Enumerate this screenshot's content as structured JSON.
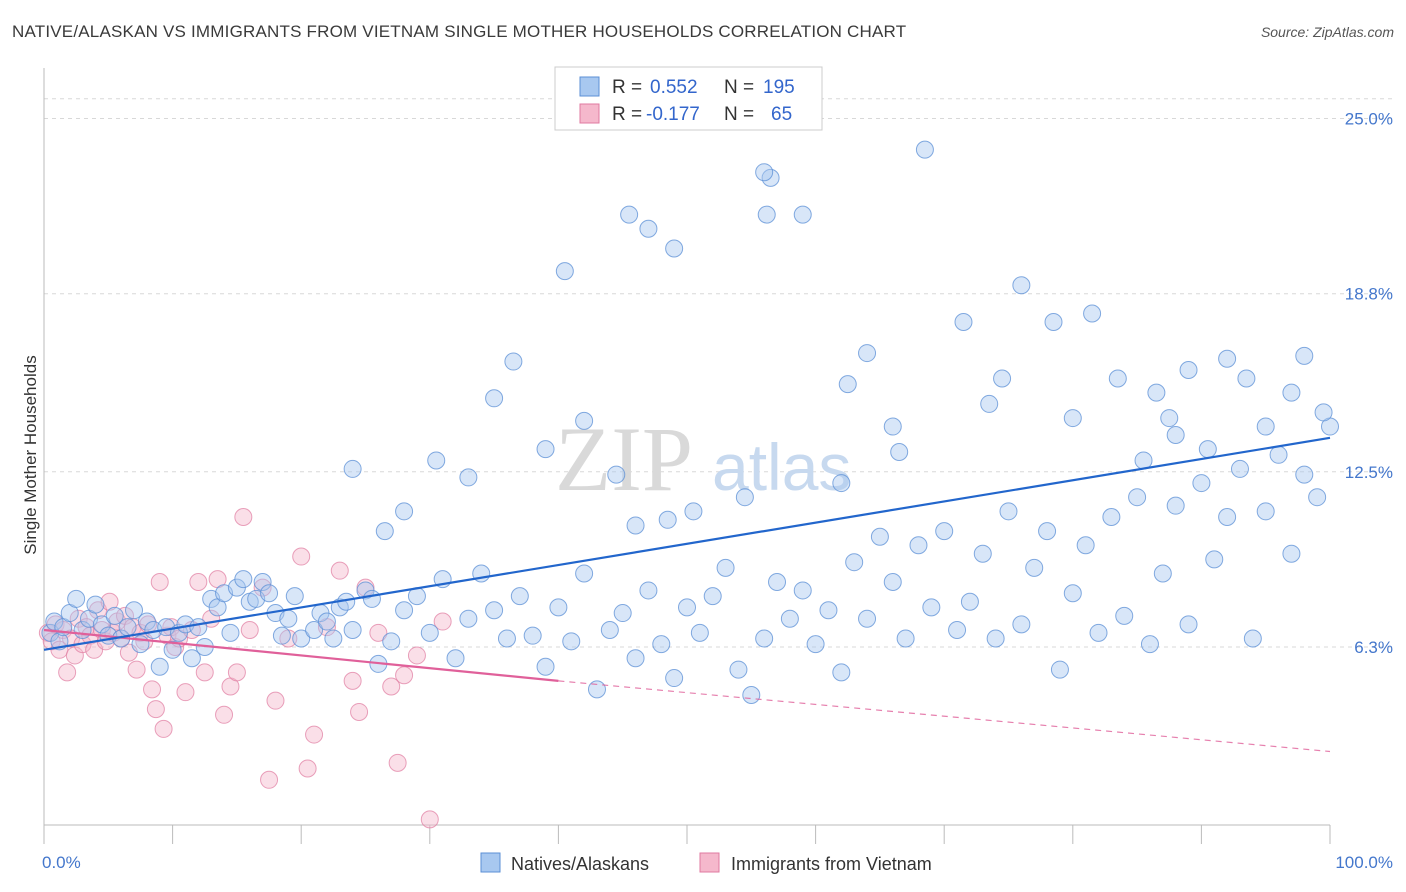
{
  "title": "NATIVE/ALASKAN VS IMMIGRANTS FROM VIETNAM SINGLE MOTHER HOUSEHOLDS CORRELATION CHART",
  "source": "Source: ZipAtlas.com",
  "watermark": {
    "zip": "ZIP",
    "atlas": "atlas"
  },
  "legend": {
    "rows": [
      {
        "r_label": "R =",
        "r_value": "0.552",
        "n_label": "N =",
        "n_value": "195"
      },
      {
        "r_label": "R =",
        "r_value": "-0.177",
        "n_label": "N =",
        "n_value": "65"
      }
    ]
  },
  "bottom_legend": [
    "Natives/Alaskans",
    "Immigrants from Vietnam"
  ],
  "chart_data": {
    "type": "scatter",
    "ylabel": "Single Mother Households",
    "xlim": [
      0,
      100
    ],
    "ylim": [
      0,
      27
    ],
    "x_tick_labels": [
      "0.0%",
      "100.0%"
    ],
    "y_ticks": [
      {
        "value": 6.3,
        "label": "6.3%"
      },
      {
        "value": 12.5,
        "label": "12.5%"
      },
      {
        "value": 18.8,
        "label": "18.8%"
      },
      {
        "value": 25.0,
        "label": "25.0%"
      }
    ],
    "grid": true,
    "legend_position": "top-center",
    "colors": {
      "blue_fill": "#a8c8f0",
      "blue_stroke": "#5b8fd6",
      "blue_line": "#2266cc",
      "pink_fill": "#f5b8cc",
      "pink_stroke": "#e07aa0",
      "pink_line": "#e0609a",
      "tick_text": "#4477cc",
      "grid": "#d8d8d8"
    },
    "series": [
      {
        "name": "Natives/Alaskans",
        "trend": {
          "x": [
            0,
            100
          ],
          "y": [
            6.2,
            13.7
          ]
        },
        "points": [
          [
            0.5,
            6.8
          ],
          [
            0.8,
            7.2
          ],
          [
            1.2,
            6.5
          ],
          [
            1.5,
            7.0
          ],
          [
            2.0,
            7.5
          ],
          [
            2.5,
            8.0
          ],
          [
            3.0,
            6.9
          ],
          [
            3.5,
            7.3
          ],
          [
            4.0,
            7.8
          ],
          [
            4.5,
            7.1
          ],
          [
            5.0,
            6.7
          ],
          [
            5.5,
            7.4
          ],
          [
            6.0,
            6.6
          ],
          [
            6.5,
            7.0
          ],
          [
            7.0,
            7.6
          ],
          [
            7.5,
            6.4
          ],
          [
            8.0,
            7.2
          ],
          [
            8.5,
            6.9
          ],
          [
            9.0,
            5.6
          ],
          [
            9.5,
            7.0
          ],
          [
            10.0,
            6.2
          ],
          [
            10.5,
            6.8
          ],
          [
            11.0,
            7.1
          ],
          [
            11.5,
            5.9
          ],
          [
            12.0,
            7.0
          ],
          [
            12.5,
            6.3
          ],
          [
            13.0,
            8.0
          ],
          [
            13.5,
            7.7
          ],
          [
            14.0,
            8.2
          ],
          [
            14.5,
            6.8
          ],
          [
            15.0,
            8.4
          ],
          [
            15.5,
            8.7
          ],
          [
            16.0,
            7.9
          ],
          [
            16.5,
            8.0
          ],
          [
            17.0,
            8.6
          ],
          [
            17.5,
            8.2
          ],
          [
            18.0,
            7.5
          ],
          [
            18.5,
            6.7
          ],
          [
            19.0,
            7.3
          ],
          [
            19.5,
            8.1
          ],
          [
            20.0,
            6.6
          ],
          [
            21.0,
            6.9
          ],
          [
            21.5,
            7.5
          ],
          [
            22.0,
            7.2
          ],
          [
            22.5,
            6.6
          ],
          [
            23.0,
            7.7
          ],
          [
            23.5,
            7.9
          ],
          [
            24.0,
            6.9
          ],
          [
            25.0,
            8.3
          ],
          [
            25.5,
            8.0
          ],
          [
            26.0,
            5.7
          ],
          [
            27.0,
            6.5
          ],
          [
            28.0,
            7.6
          ],
          [
            29.0,
            8.1
          ],
          [
            30.0,
            6.8
          ],
          [
            31.0,
            8.7
          ],
          [
            32.0,
            5.9
          ],
          [
            33.0,
            7.3
          ],
          [
            34.0,
            8.9
          ],
          [
            35.0,
            7.6
          ],
          [
            36.0,
            6.6
          ],
          [
            37.0,
            8.1
          ],
          [
            38.0,
            6.7
          ],
          [
            39.0,
            5.6
          ],
          [
            40.0,
            7.7
          ],
          [
            41.0,
            6.5
          ],
          [
            42.0,
            8.9
          ],
          [
            43.0,
            4.8
          ],
          [
            44.0,
            6.9
          ],
          [
            45.0,
            7.5
          ],
          [
            46.0,
            5.9
          ],
          [
            47.0,
            8.3
          ],
          [
            48.0,
            6.4
          ],
          [
            49.0,
            5.2
          ],
          [
            50.0,
            7.7
          ],
          [
            51.0,
            6.8
          ],
          [
            52.0,
            8.1
          ],
          [
            53.0,
            9.1
          ],
          [
            54.0,
            5.5
          ],
          [
            55.0,
            4.6
          ],
          [
            56.0,
            6.6
          ],
          [
            57.0,
            8.6
          ],
          [
            58.0,
            7.3
          ],
          [
            59.0,
            8.3
          ],
          [
            60.0,
            6.4
          ],
          [
            61.0,
            7.6
          ],
          [
            62.0,
            5.4
          ],
          [
            63.0,
            9.3
          ],
          [
            64.0,
            7.3
          ],
          [
            65.0,
            10.2
          ],
          [
            66.0,
            8.6
          ],
          [
            67.0,
            6.6
          ],
          [
            68.0,
            9.9
          ],
          [
            69.0,
            7.7
          ],
          [
            70.0,
            10.4
          ],
          [
            71.0,
            6.9
          ],
          [
            72.0,
            7.9
          ],
          [
            73.0,
            9.6
          ],
          [
            74.0,
            6.6
          ],
          [
            75.0,
            11.1
          ],
          [
            76.0,
            7.1
          ],
          [
            77.0,
            9.1
          ],
          [
            78.0,
            10.4
          ],
          [
            79.0,
            5.5
          ],
          [
            80.0,
            8.2
          ],
          [
            81.0,
            9.9
          ],
          [
            82.0,
            6.8
          ],
          [
            83.0,
            10.9
          ],
          [
            84.0,
            7.4
          ],
          [
            85.0,
            11.6
          ],
          [
            86.0,
            6.4
          ],
          [
            87.0,
            8.9
          ],
          [
            88.0,
            11.3
          ],
          [
            89.0,
            7.1
          ],
          [
            90.0,
            12.1
          ],
          [
            91.0,
            9.4
          ],
          [
            92.0,
            10.9
          ],
          [
            93.0,
            12.6
          ],
          [
            94.0,
            6.6
          ],
          [
            95.0,
            11.1
          ],
          [
            96.0,
            13.1
          ],
          [
            97.0,
            9.6
          ],
          [
            98.0,
            12.4
          ],
          [
            99.0,
            11.6
          ],
          [
            100.0,
            14.1
          ],
          [
            36.5,
            16.4
          ],
          [
            40.5,
            19.6
          ],
          [
            45.5,
            21.6
          ],
          [
            47.0,
            21.1
          ],
          [
            49.0,
            20.4
          ],
          [
            56.5,
            22.9
          ],
          [
            56.0,
            23.1
          ],
          [
            56.2,
            21.6
          ],
          [
            59.0,
            21.6
          ],
          [
            62.5,
            15.6
          ],
          [
            64.0,
            16.7
          ],
          [
            66.0,
            14.1
          ],
          [
            68.5,
            23.9
          ],
          [
            71.5,
            17.8
          ],
          [
            73.5,
            14.9
          ],
          [
            74.5,
            15.8
          ],
          [
            76.0,
            19.1
          ],
          [
            78.5,
            17.8
          ],
          [
            80.0,
            14.4
          ],
          [
            81.5,
            18.1
          ],
          [
            83.5,
            15.8
          ],
          [
            85.5,
            12.9
          ],
          [
            86.5,
            15.3
          ],
          [
            87.5,
            14.4
          ],
          [
            88.0,
            13.8
          ],
          [
            89.0,
            16.1
          ],
          [
            90.5,
            13.3
          ],
          [
            92.0,
            16.5
          ],
          [
            93.5,
            15.8
          ],
          [
            95.0,
            14.1
          ],
          [
            97.0,
            15.3
          ],
          [
            98.0,
            16.6
          ],
          [
            99.5,
            14.6
          ],
          [
            66.5,
            13.2
          ],
          [
            62.0,
            12.1
          ],
          [
            54.5,
            11.6
          ],
          [
            50.5,
            11.1
          ],
          [
            48.5,
            10.8
          ],
          [
            46.0,
            10.6
          ],
          [
            44.5,
            12.4
          ],
          [
            42.0,
            14.3
          ],
          [
            39.0,
            13.3
          ],
          [
            35.0,
            15.1
          ],
          [
            33.0,
            12.3
          ],
          [
            30.5,
            12.9
          ],
          [
            28.0,
            11.1
          ],
          [
            26.5,
            10.4
          ],
          [
            24.0,
            12.6
          ]
        ]
      },
      {
        "name": "Immigrants from Vietnam",
        "trend": {
          "x": [
            0,
            40
          ],
          "y": [
            6.9,
            5.1
          ]
        },
        "trend_extended": {
          "x": [
            40,
            100
          ],
          "y": [
            5.1,
            2.6
          ]
        },
        "points": [
          [
            0.3,
            6.8
          ],
          [
            0.6,
            6.5
          ],
          [
            0.9,
            7.1
          ],
          [
            1.2,
            6.2
          ],
          [
            1.5,
            6.9
          ],
          [
            1.8,
            5.4
          ],
          [
            2.1,
            6.6
          ],
          [
            2.4,
            6.0
          ],
          [
            2.7,
            7.3
          ],
          [
            3.0,
            6.4
          ],
          [
            3.3,
            7.0
          ],
          [
            3.6,
            6.7
          ],
          [
            3.9,
            6.2
          ],
          [
            4.2,
            7.6
          ],
          [
            4.5,
            6.9
          ],
          [
            4.8,
            6.5
          ],
          [
            5.1,
            7.9
          ],
          [
            5.4,
            6.8
          ],
          [
            5.7,
            7.2
          ],
          [
            6.0,
            6.6
          ],
          [
            6.3,
            7.4
          ],
          [
            6.6,
            6.1
          ],
          [
            6.9,
            7.0
          ],
          [
            7.2,
            5.5
          ],
          [
            7.5,
            6.8
          ],
          [
            7.8,
            6.5
          ],
          [
            8.1,
            7.1
          ],
          [
            8.4,
            4.8
          ],
          [
            8.7,
            4.1
          ],
          [
            9.0,
            8.6
          ],
          [
            9.3,
            3.4
          ],
          [
            9.6,
            6.7
          ],
          [
            9.9,
            7.0
          ],
          [
            10.2,
            6.3
          ],
          [
            10.5,
            6.6
          ],
          [
            11.0,
            4.7
          ],
          [
            11.5,
            6.9
          ],
          [
            12.0,
            8.6
          ],
          [
            12.5,
            5.4
          ],
          [
            13.0,
            7.3
          ],
          [
            13.5,
            8.7
          ],
          [
            14.0,
            3.9
          ],
          [
            14.5,
            4.9
          ],
          [
            15.0,
            5.4
          ],
          [
            15.5,
            10.9
          ],
          [
            16.0,
            6.9
          ],
          [
            17.0,
            8.4
          ],
          [
            18.0,
            4.4
          ],
          [
            19.0,
            6.6
          ],
          [
            20.0,
            9.5
          ],
          [
            21.0,
            3.2
          ],
          [
            22.0,
            7.0
          ],
          [
            23.0,
            9.0
          ],
          [
            24.0,
            5.1
          ],
          [
            25.0,
            8.4
          ],
          [
            26.0,
            6.8
          ],
          [
            27.0,
            4.9
          ],
          [
            28.0,
            5.3
          ],
          [
            29.0,
            6.0
          ],
          [
            30.0,
            0.2
          ],
          [
            31.0,
            7.2
          ],
          [
            17.5,
            1.6
          ],
          [
            20.5,
            2.0
          ],
          [
            24.5,
            4.0
          ],
          [
            27.5,
            2.2
          ]
        ]
      }
    ]
  }
}
